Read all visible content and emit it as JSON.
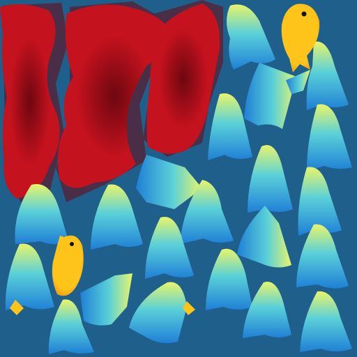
{
  "texture": {
    "background_color": "#1e5f8c",
    "coral_color": "#c4121e",
    "coral_dark_color": "#6e0710",
    "fish_color": "#ffc41a",
    "fish_shade_color": "#e88a0a",
    "fin_tip_color": "#e8f56a",
    "fin_mid_color": "#5ad0d8",
    "fin_base_color": "#1f7fd6"
  }
}
